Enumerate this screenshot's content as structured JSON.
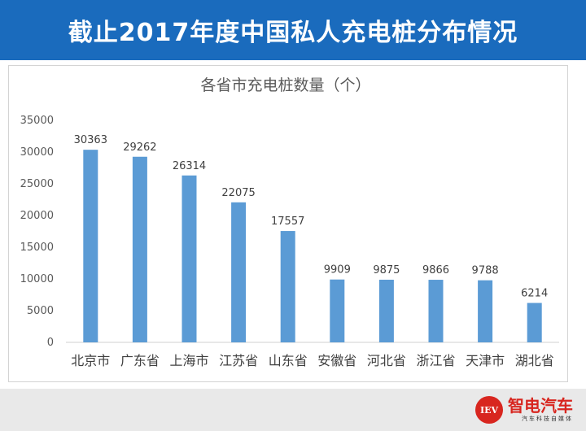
{
  "header": {
    "title": "截止2017年度中国私人充电桩分布情况"
  },
  "colors": {
    "header_bg": "#1a6bbd",
    "bar": "#5b9bd5",
    "logo_red": "#d8261f"
  },
  "chart_data": {
    "type": "bar",
    "title": "各省市充电桩数量（个）",
    "categories": [
      "北京市",
      "广东省",
      "上海市",
      "江苏省",
      "山东省",
      "安徽省",
      "河北省",
      "浙江省",
      "天津市",
      "湖北省"
    ],
    "values": [
      30363,
      29262,
      26314,
      22075,
      17557,
      9909,
      9875,
      9866,
      9788,
      6214
    ],
    "ylim": [
      0,
      35000
    ],
    "yticks": [
      0,
      5000,
      10000,
      15000,
      20000,
      25000,
      30000,
      35000
    ],
    "grid": false,
    "data_labels": true
  },
  "footer": {
    "logo_badge": "IEV",
    "logo_name": "智电汽车",
    "logo_sub": "汽车科技自媒体"
  }
}
